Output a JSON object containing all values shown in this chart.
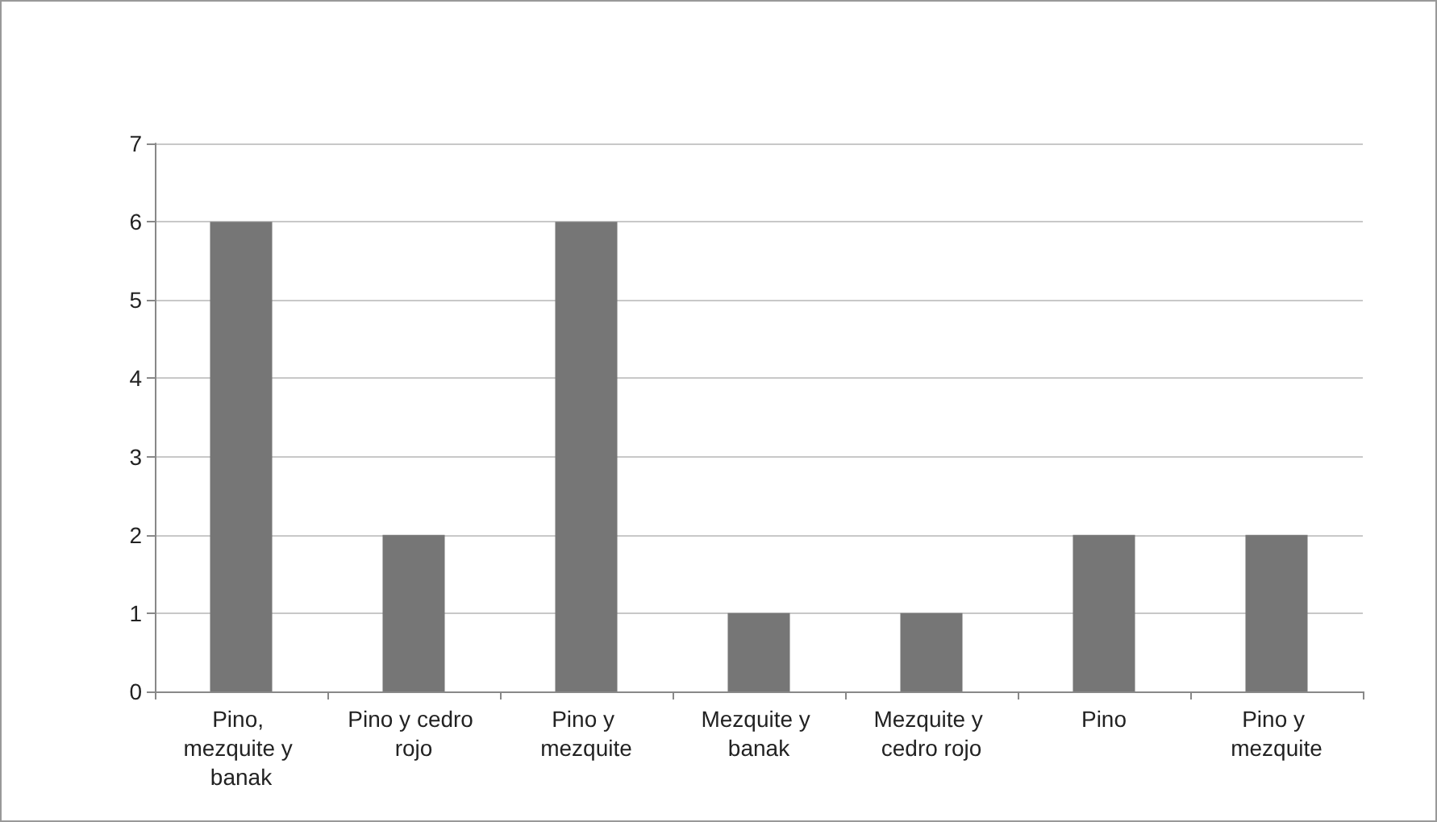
{
  "chart_data": {
    "type": "bar",
    "categories": [
      "Pino, mezquite y banak",
      "Pino y cedro rojo",
      "Pino y mezquite",
      "Mezquite y banak",
      "Mezquite y cedro rojo",
      "Pino",
      "Pino y mezquite"
    ],
    "values": [
      6,
      2,
      6,
      1,
      1,
      2,
      2
    ],
    "color": "#767676",
    "ylim": [
      0,
      7
    ],
    "yticks": [
      0,
      1,
      2,
      3,
      4,
      5,
      6,
      7
    ],
    "grid": "y"
  }
}
